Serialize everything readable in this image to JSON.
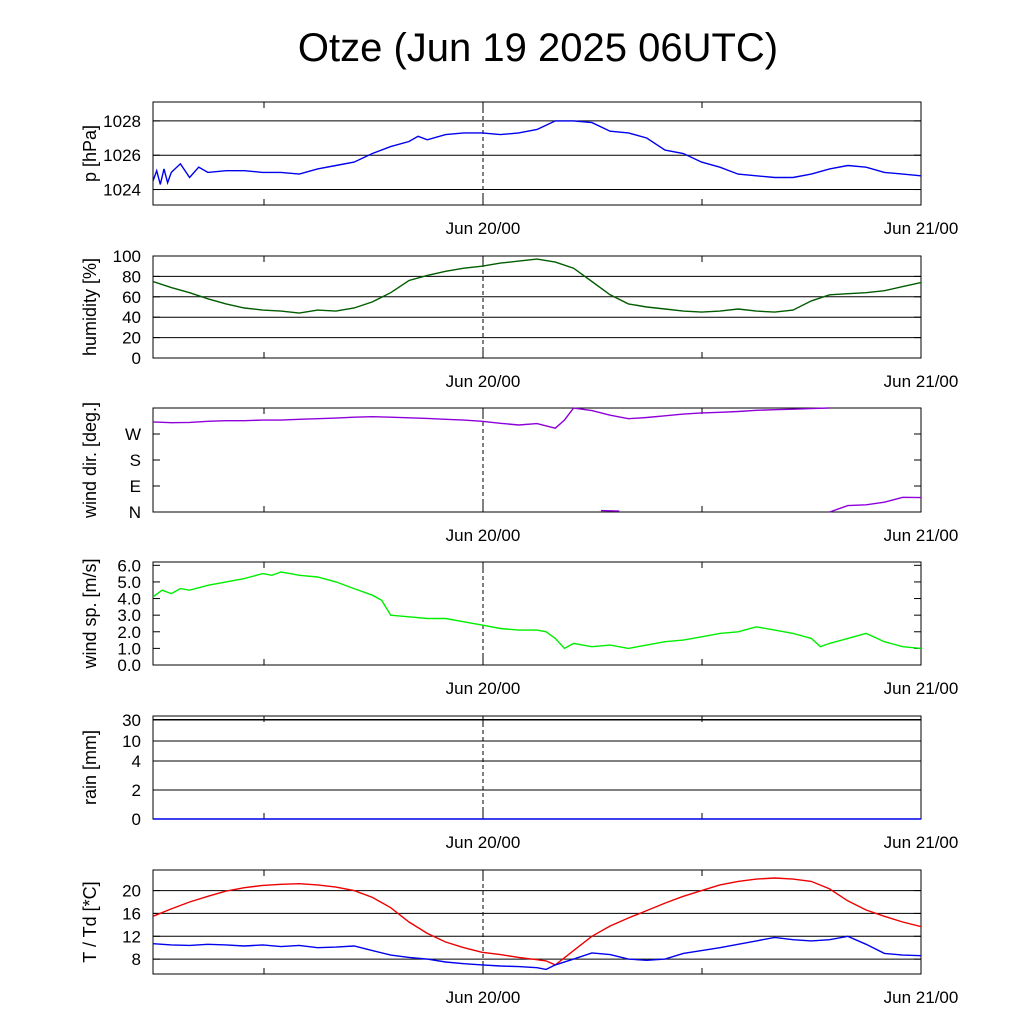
{
  "title": "Otze (Jun 19 2025 06UTC)",
  "chart_data": [
    {
      "type": "line",
      "ylabel": "p [hPa]",
      "ylim": [
        1023.1,
        1029.1
      ],
      "yticks": [
        "1024",
        "1026",
        "1028"
      ],
      "grid": true,
      "x_ticks": [
        "Jun 20/00",
        "Jun 21/00"
      ],
      "colors": [
        "#0000ee"
      ],
      "series": [
        {
          "x": [
            0,
            0.2,
            0.4,
            0.6,
            0.8,
            1.0,
            1.5,
            2,
            2.5,
            3,
            4,
            5,
            6,
            7,
            8,
            9,
            10,
            11,
            12,
            13,
            14,
            14.5,
            15,
            16,
            17,
            18,
            19,
            20,
            21,
            22,
            23,
            24,
            25,
            26,
            27,
            28,
            29,
            30,
            31,
            32,
            33,
            34,
            35,
            36,
            37,
            38,
            39,
            40,
            41,
            42
          ],
          "y": [
            1024.5,
            1025.1,
            1024.3,
            1025.2,
            1024.4,
            1025.0,
            1025.5,
            1024.7,
            1025.3,
            1025.0,
            1025.1,
            1025.1,
            1025.0,
            1025.0,
            1024.9,
            1025.2,
            1025.4,
            1025.6,
            1026.1,
            1026.5,
            1026.8,
            1027.1,
            1026.9,
            1027.2,
            1027.3,
            1027.3,
            1027.2,
            1027.3,
            1027.5,
            1028.0,
            1028.0,
            1027.9,
            1027.4,
            1027.3,
            1027.0,
            1026.3,
            1026.1,
            1025.6,
            1025.3,
            1024.9,
            1024.8,
            1024.7,
            1024.7,
            1024.9,
            1025.2,
            1025.4,
            1025.3,
            1025.0,
            1024.9,
            1024.8
          ]
        }
      ]
    },
    {
      "type": "line",
      "ylabel": "humidity [%]",
      "ylim": [
        0,
        100
      ],
      "yticks": [
        "0",
        "20",
        "40",
        "60",
        "80",
        "100"
      ],
      "grid": true,
      "x_ticks": [
        "Jun 20/00",
        "Jun 21/00"
      ],
      "colors": [
        "#005c00"
      ],
      "series": [
        {
          "x": [
            0,
            1,
            2,
            3,
            4,
            5,
            6,
            7,
            8,
            9,
            10,
            11,
            12,
            13,
            14,
            15,
            16,
            17,
            18,
            19,
            20,
            21,
            22,
            23,
            24,
            25,
            26,
            27,
            28,
            29,
            30,
            31,
            32,
            33,
            34,
            35,
            36,
            37,
            38,
            39,
            40,
            41,
            42
          ],
          "y": [
            75,
            69,
            64,
            58,
            53,
            49,
            47,
            46,
            44,
            47,
            46,
            49,
            55,
            64,
            76,
            81,
            85,
            88,
            90,
            93,
            95,
            97,
            94,
            88,
            75,
            62,
            53,
            50,
            48,
            46,
            45,
            46,
            48,
            46,
            45,
            47,
            56,
            62,
            63,
            64,
            66,
            70,
            74
          ]
        }
      ]
    },
    {
      "type": "line",
      "ylabel": "wind dir. [deg.]",
      "ylim": [
        0,
        360
      ],
      "yticks": [
        "N",
        "E",
        "S",
        "W"
      ],
      "grid": false,
      "x_ticks": [
        "Jun 20/00",
        "Jun 21/00"
      ],
      "colors": [
        "#8e00d9"
      ],
      "series": [
        {
          "x": [
            0,
            1,
            2,
            3,
            4,
            5,
            6,
            7,
            8,
            9,
            10,
            11,
            12,
            13,
            14,
            15,
            16,
            17,
            18,
            19,
            20,
            21,
            22,
            22.5,
            23,
            24,
            25,
            26,
            27,
            28,
            29,
            30,
            31,
            32,
            33,
            34,
            35,
            36,
            37
          ],
          "y": [
            312,
            309,
            310,
            314,
            316,
            316,
            318,
            318,
            321,
            323,
            325,
            328,
            330,
            328,
            326,
            324,
            321,
            318,
            314,
            307,
            301,
            306,
            290,
            318,
            360,
            351,
            335,
            323,
            327,
            333,
            339,
            343,
            345,
            348,
            352,
            354,
            356,
            358,
            360
          ]
        },
        {
          "x": [
            24.5,
            25.5
          ],
          "y": [
            5,
            3
          ]
        },
        {
          "x": [
            37,
            38,
            39,
            40,
            41,
            42
          ],
          "y": [
            0,
            22,
            25,
            34,
            51,
            50
          ]
        }
      ]
    },
    {
      "type": "line",
      "ylabel": "wind sp. [m/s]",
      "ylim": [
        0,
        6.2
      ],
      "yticks": [
        "0.0",
        "1.0",
        "2.0",
        "3.0",
        "4.0",
        "5.0",
        "6.0"
      ],
      "grid": false,
      "x_ticks": [
        "Jun 20/00",
        "Jun 21/00"
      ],
      "colors": [
        "#00ee00"
      ],
      "series": [
        {
          "x": [
            0,
            0.5,
            1,
            1.5,
            2,
            3,
            4,
            5,
            6,
            6.5,
            7,
            7.5,
            8,
            9,
            10,
            11,
            12,
            12.5,
            13,
            14,
            15,
            16,
            17,
            18,
            19,
            20,
            21,
            21.5,
            22,
            22.5,
            23,
            23.5,
            24,
            25,
            26,
            26.5,
            27,
            28,
            29,
            30,
            31,
            32,
            33,
            34,
            35,
            36,
            36.5,
            37,
            38,
            39,
            40,
            41,
            42
          ],
          "y": [
            4.1,
            4.5,
            4.3,
            4.6,
            4.5,
            4.8,
            5.0,
            5.2,
            5.5,
            5.4,
            5.6,
            5.5,
            5.4,
            5.3,
            5.0,
            4.6,
            4.2,
            3.9,
            3.0,
            2.9,
            2.8,
            2.8,
            2.6,
            2.4,
            2.2,
            2.1,
            2.1,
            2.0,
            1.6,
            1.0,
            1.3,
            1.2,
            1.1,
            1.2,
            1.0,
            1.1,
            1.2,
            1.4,
            1.5,
            1.7,
            1.9,
            2.0,
            2.3,
            2.1,
            1.9,
            1.6,
            1.1,
            1.3,
            1.6,
            1.9,
            1.4,
            1.1,
            1.0
          ]
        }
      ]
    },
    {
      "type": "line",
      "ylabel": "rain [mm]",
      "yticks": [
        "0",
        "2",
        "4",
        "10",
        "30"
      ],
      "grid": true,
      "x_ticks": [
        "Jun 20/00",
        "Jun 21/00"
      ],
      "colors": [
        "#0000ee"
      ],
      "series": [
        {
          "x": [
            0,
            42
          ],
          "y": [
            0,
            0
          ]
        }
      ]
    },
    {
      "type": "line",
      "ylabel": "T / Td [*C]",
      "ylim": [
        5.4,
        23.6
      ],
      "yticks": [
        "8",
        "12",
        "16",
        "20"
      ],
      "grid": true,
      "x_ticks": [
        "Jun 20/00",
        "Jun 21/00"
      ],
      "colors": [
        "#ee0000",
        "#0000ee"
      ],
      "series": [
        {
          "x": [
            0,
            1,
            2,
            3,
            4,
            5,
            6,
            7,
            8,
            9,
            10,
            11,
            12,
            13,
            14,
            15,
            16,
            17,
            18,
            19,
            20,
            21,
            21.5,
            22,
            23,
            24,
            25,
            26,
            27,
            28,
            29,
            30,
            31,
            32,
            33,
            34,
            35,
            36,
            37,
            38,
            39,
            40,
            41,
            42
          ],
          "y": [
            15.5,
            16.8,
            18.0,
            19.0,
            19.9,
            20.5,
            20.9,
            21.1,
            21.2,
            21.0,
            20.6,
            20.0,
            18.8,
            17.0,
            14.5,
            12.5,
            11.0,
            10.0,
            9.2,
            8.8,
            8.3,
            7.9,
            7.7,
            7.0,
            9.5,
            12.0,
            13.8,
            15.2,
            16.5,
            17.8,
            19.0,
            20.0,
            21.0,
            21.6,
            22.0,
            22.2,
            22.0,
            21.6,
            20.3,
            18.2,
            16.6,
            15.5,
            14.5,
            13.7
          ]
        },
        {
          "x": [
            0,
            1,
            2,
            3,
            4,
            5,
            6,
            7,
            8,
            9,
            10,
            11,
            12,
            13,
            14,
            15,
            16,
            17,
            18,
            19,
            20,
            21,
            21.5,
            22,
            23,
            24,
            25,
            26,
            27,
            28,
            29,
            30,
            31,
            32,
            33,
            34,
            35,
            36,
            37,
            38,
            39,
            40,
            41,
            42
          ],
          "y": [
            10.7,
            10.5,
            10.4,
            10.6,
            10.5,
            10.3,
            10.5,
            10.2,
            10.4,
            10.0,
            10.1,
            10.3,
            9.5,
            8.7,
            8.3,
            8.0,
            7.5,
            7.2,
            7.0,
            6.8,
            6.7,
            6.5,
            6.2,
            7.0,
            8.0,
            9.1,
            8.8,
            8.0,
            7.8,
            8.0,
            9.0,
            9.5,
            10.0,
            10.6,
            11.2,
            11.8,
            11.4,
            11.2,
            11.4,
            12.0,
            10.6,
            9.0,
            8.7,
            8.6
          ]
        }
      ]
    }
  ]
}
